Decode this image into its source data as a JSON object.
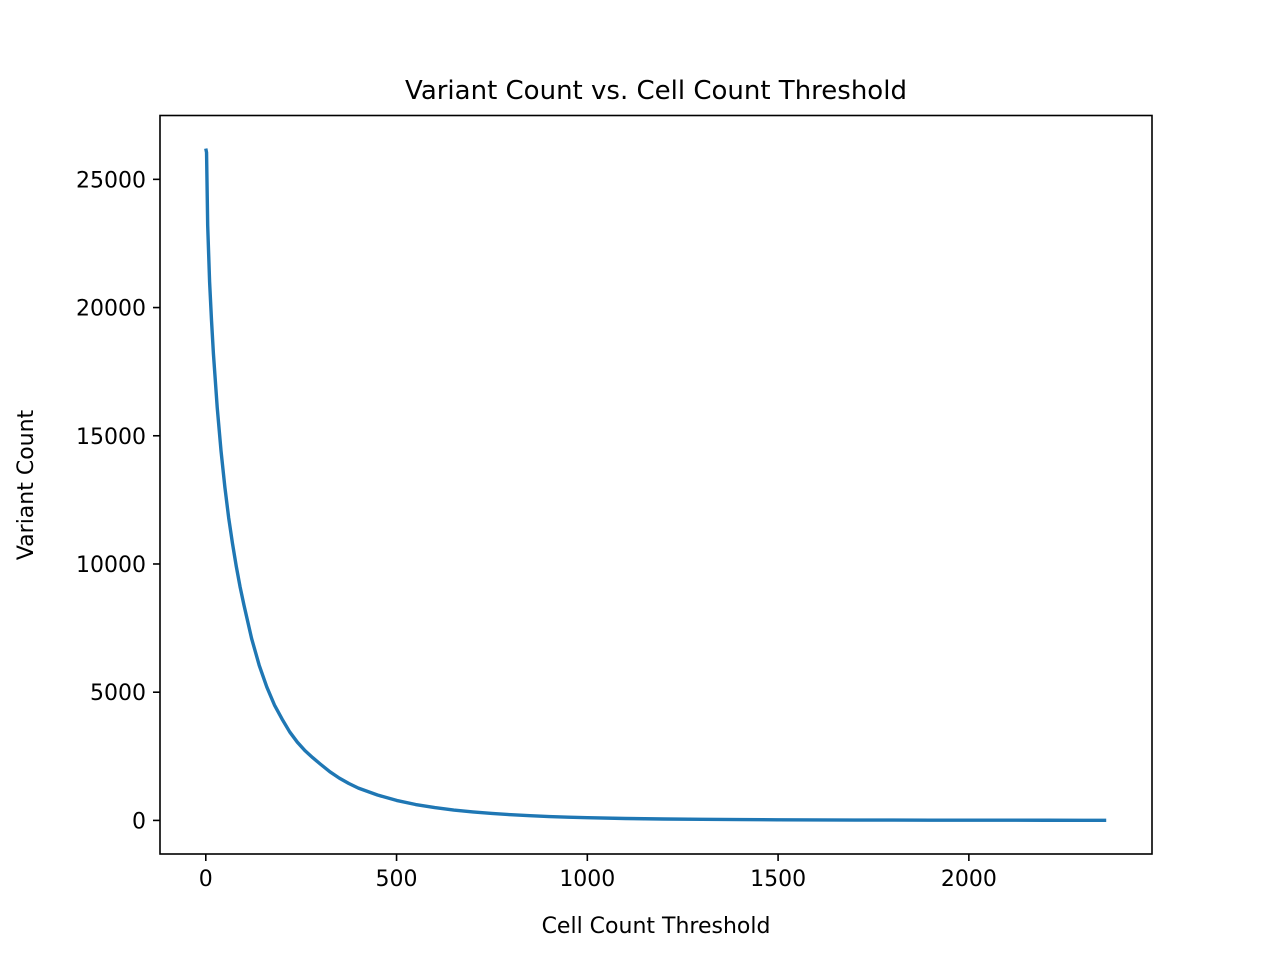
{
  "chart_data": {
    "type": "line",
    "title": "Variant Count vs. Cell Count Threshold",
    "xlabel": "Cell Count Threshold",
    "ylabel": "Variant Count",
    "xlim": [
      -120,
      2480
    ],
    "ylim": [
      -1310,
      27490
    ],
    "xticks": [
      0,
      500,
      1000,
      1500,
      2000
    ],
    "yticks": [
      0,
      5000,
      10000,
      15000,
      20000,
      25000
    ],
    "grid": false,
    "legend": "none",
    "series": [
      {
        "name": "Variant Count",
        "color": "#1f77b4",
        "x": [
          0,
          2,
          5,
          10,
          15,
          20,
          30,
          40,
          50,
          60,
          70,
          80,
          90,
          100,
          120,
          140,
          160,
          180,
          200,
          220,
          240,
          260,
          280,
          300,
          325,
          350,
          375,
          400,
          450,
          500,
          550,
          600,
          650,
          700,
          750,
          800,
          850,
          900,
          950,
          1000,
          1100,
          1200,
          1300,
          1400,
          1500,
          1600,
          1700,
          1800,
          1900,
          2000,
          2100,
          2200,
          2300,
          2360
        ],
        "y": [
          26200,
          26050,
          23200,
          21000,
          19500,
          18200,
          16100,
          14400,
          13000,
          11800,
          10800,
          9900,
          9100,
          8400,
          7100,
          6050,
          5200,
          4500,
          3950,
          3450,
          3050,
          2720,
          2450,
          2200,
          1900,
          1650,
          1440,
          1260,
          990,
          780,
          620,
          500,
          405,
          330,
          270,
          222,
          183,
          151,
          126,
          105,
          75,
          55,
          41,
          31,
          24,
          19,
          15,
          12,
          10,
          8,
          7,
          6,
          5,
          5
        ]
      }
    ]
  }
}
